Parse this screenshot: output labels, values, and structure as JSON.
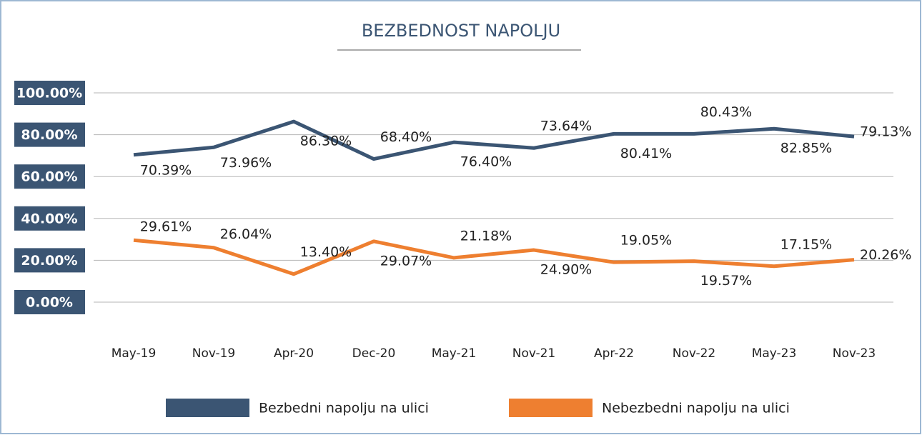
{
  "chart_data": {
    "type": "line",
    "title": "BEZBEDNOST NAPOLJU",
    "categories": [
      "May-19",
      "Nov-19",
      "Apr-20",
      "Dec-20",
      "May-21",
      "Nov-21",
      "Apr-22",
      "Nov-22",
      "May-23",
      "Nov-23"
    ],
    "series": [
      {
        "name": "Bezbedni napolju na ulici",
        "color": "#3b5573",
        "values": [
          70.39,
          73.96,
          86.3,
          68.4,
          76.4,
          73.64,
          80.41,
          80.43,
          82.85,
          79.13
        ],
        "value_labels": [
          "70.39%",
          "73.96%",
          "86.30%",
          "68.40%",
          "76.40%",
          "73.64%",
          "80.41%",
          "80.43%",
          "82.85%",
          "79.13%"
        ]
      },
      {
        "name": "Nebezbedni napolju na ulici",
        "color": "#ee7f30",
        "values": [
          29.61,
          26.04,
          13.4,
          29.07,
          21.18,
          24.9,
          19.05,
          19.57,
          17.15,
          20.26
        ],
        "value_labels": [
          "29.61%",
          "26.04%",
          "13.40%",
          "29.07%",
          "21.18%",
          "24.90%",
          "19.05%",
          "19.57%",
          "17.15%",
          "20.26%"
        ]
      }
    ],
    "ylim": [
      0,
      100
    ],
    "yticks": [
      {
        "value": 0,
        "label": "0.00%"
      },
      {
        "value": 20,
        "label": "20.00%"
      },
      {
        "value": 40,
        "label": "40.00%"
      },
      {
        "value": 60,
        "label": "60.00%"
      },
      {
        "value": 80,
        "label": "80.00%"
      },
      {
        "value": 100,
        "label": "100.00%"
      }
    ],
    "grid": true,
    "legend": "bottom"
  }
}
